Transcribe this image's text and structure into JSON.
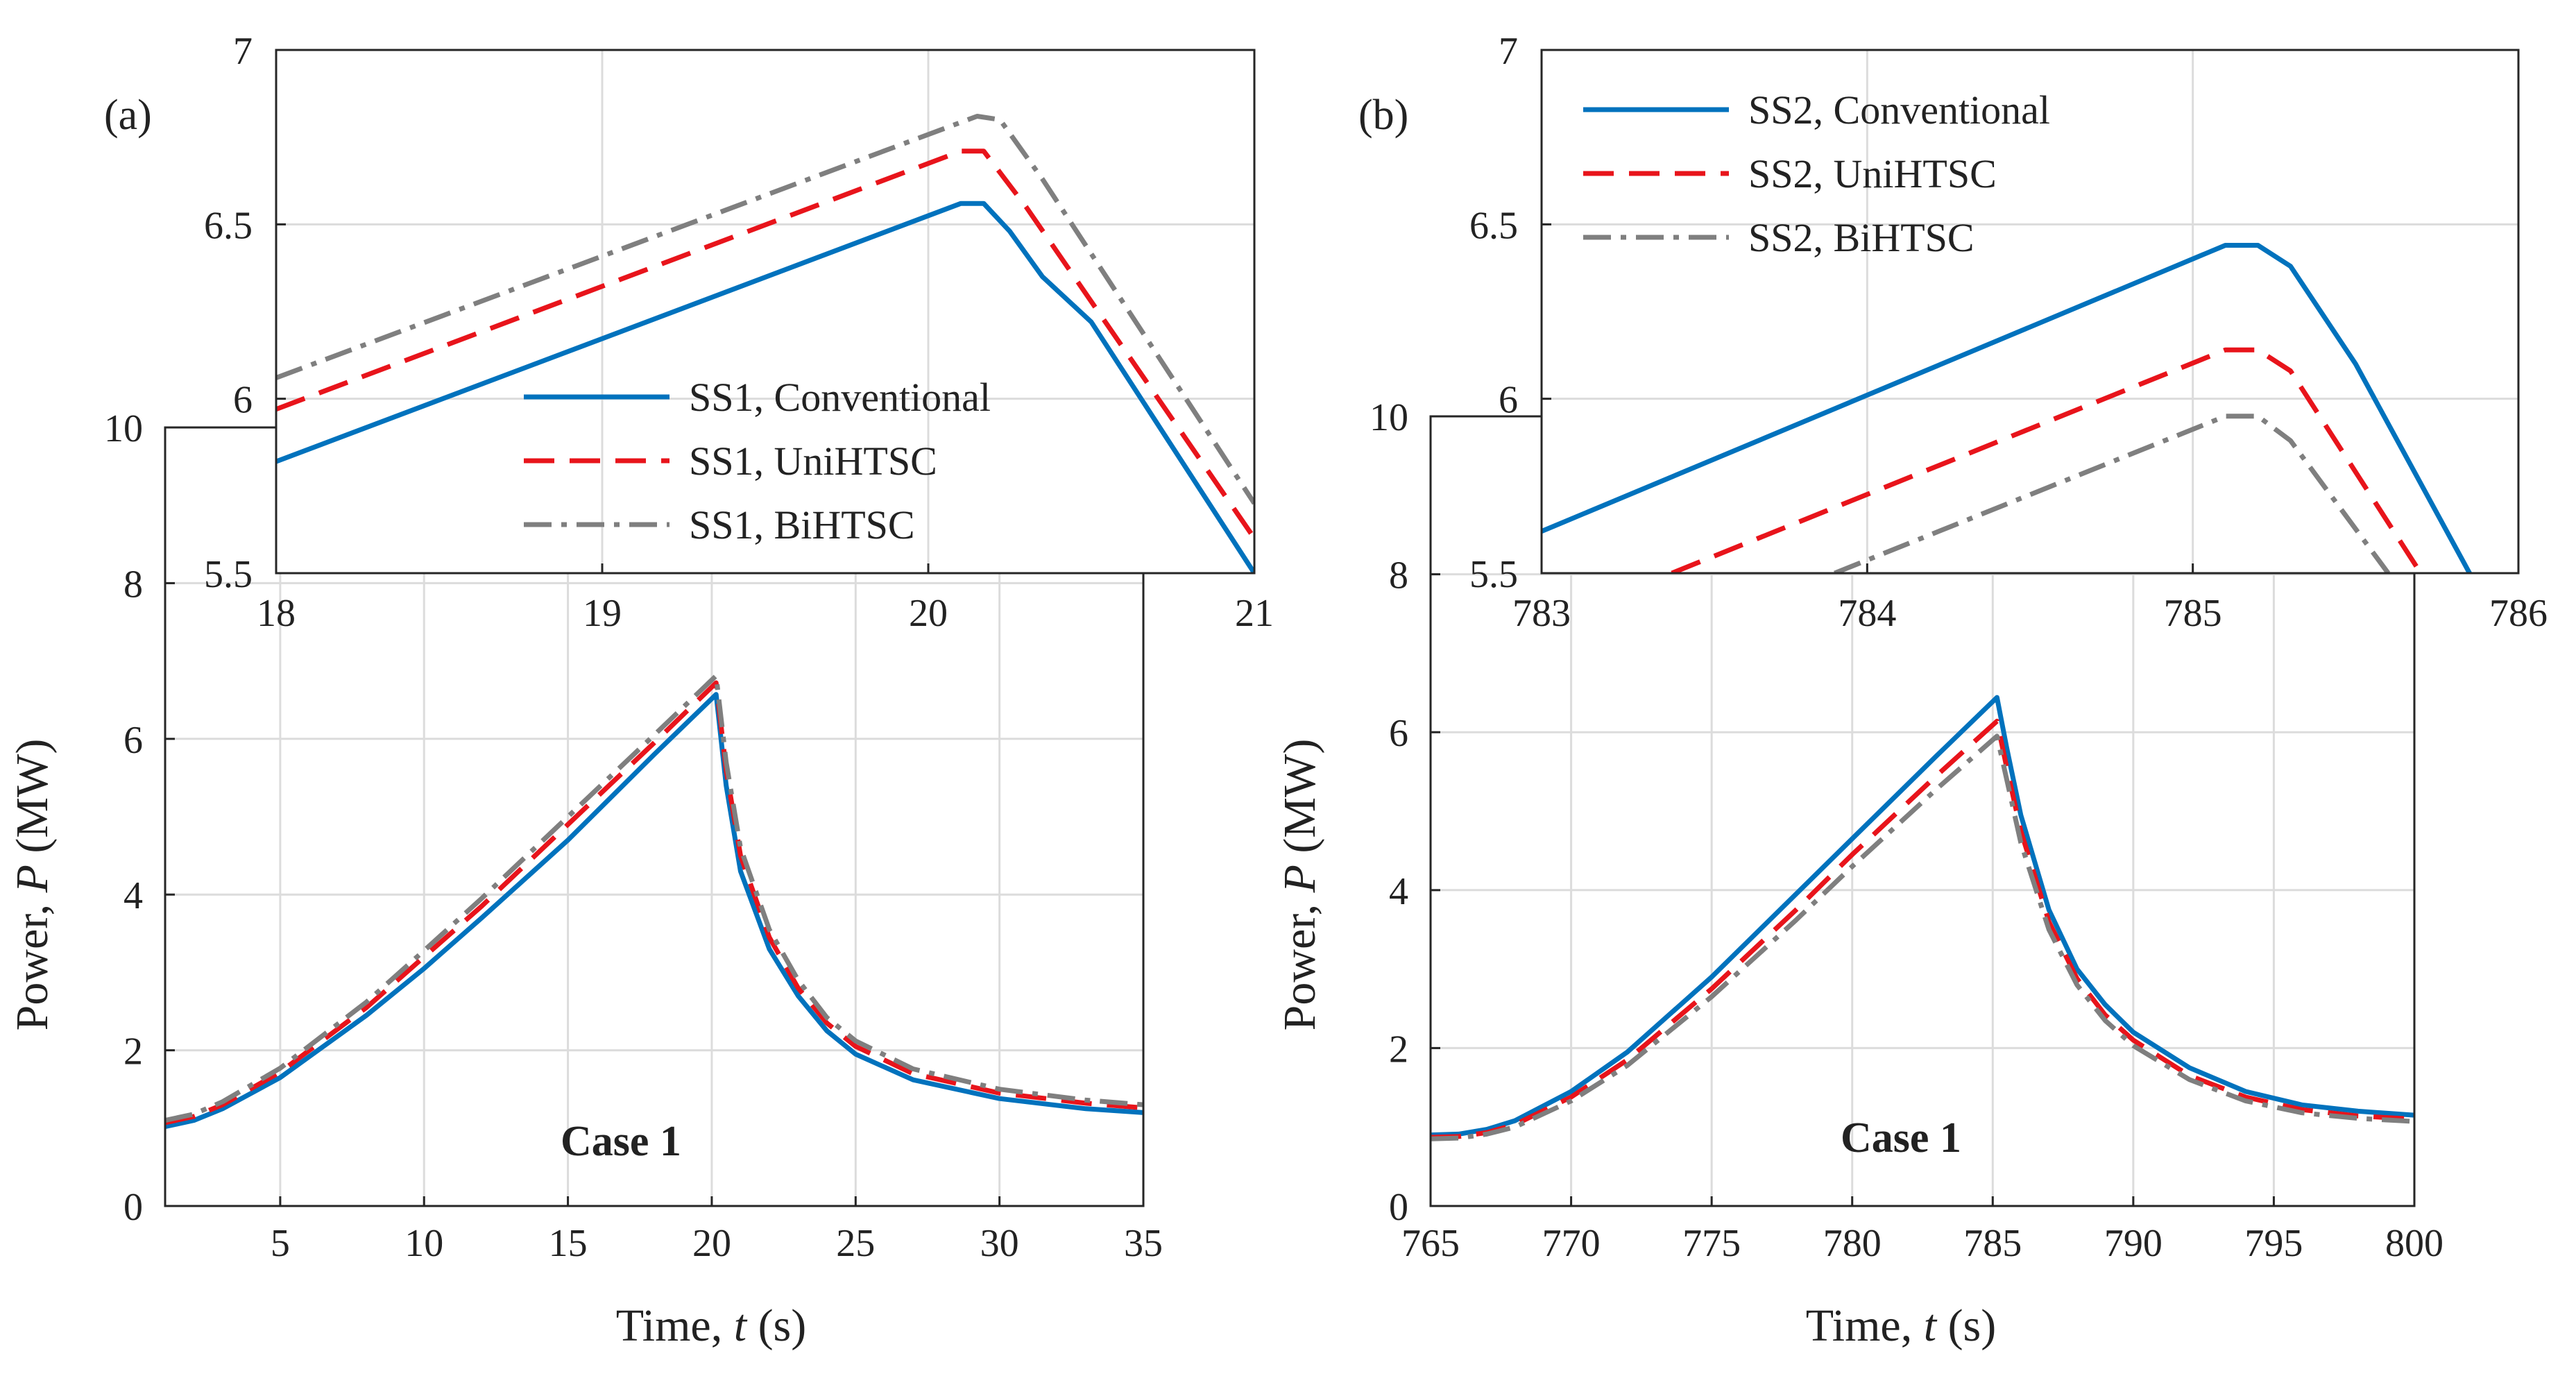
{
  "figure": {
    "colors": {
      "conventional": "#0072BD",
      "unihtsc": "#E8141B",
      "bihtsc": "#7F7F7F",
      "grid": "#DCDCDC",
      "axis": "#262626"
    }
  },
  "chart_data": [
    {
      "id": "a-main",
      "type": "line",
      "panel_label": "(a)",
      "annotation": "Case 1",
      "xlabel_main": "Time, ",
      "xlabel_var": "t",
      "xlabel_unit": " (s)",
      "ylabel_main": "Power, ",
      "ylabel_var": "P",
      "ylabel_unit": " (MW)",
      "xlim": [
        1,
        35
      ],
      "ylim": [
        0,
        10
      ],
      "xticks": [
        5,
        10,
        15,
        20,
        25,
        30,
        35
      ],
      "yticks": [
        0,
        2,
        4,
        6,
        8,
        10
      ],
      "series": [
        {
          "name": "SS1, Conventional",
          "key": "conventional",
          "x": [
            1,
            2,
            3,
            5,
            8,
            10,
            12,
            15,
            18,
            20.15,
            20.5,
            21,
            22,
            23,
            24,
            25,
            27,
            30,
            33,
            35
          ],
          "y": [
            1.02,
            1.1,
            1.25,
            1.65,
            2.45,
            3.05,
            3.7,
            4.7,
            5.8,
            6.57,
            5.4,
            4.3,
            3.3,
            2.7,
            2.25,
            1.95,
            1.62,
            1.38,
            1.25,
            1.2
          ]
        },
        {
          "name": "SS1, UniHTSC",
          "key": "unihtsc",
          "x": [
            1,
            2,
            3,
            5,
            8,
            10,
            12,
            15,
            18,
            20.15,
            20.5,
            21,
            22,
            23,
            24,
            25,
            27,
            30,
            33,
            35
          ],
          "y": [
            1.07,
            1.15,
            1.3,
            1.72,
            2.55,
            3.2,
            3.85,
            4.9,
            5.95,
            6.72,
            5.6,
            4.5,
            3.45,
            2.8,
            2.35,
            2.05,
            1.7,
            1.45,
            1.32,
            1.26
          ]
        },
        {
          "name": "SS1, BiHTSC",
          "key": "bihtsc",
          "x": [
            1,
            2,
            3,
            5,
            8,
            10,
            12,
            15,
            18,
            20.15,
            20.5,
            21,
            22,
            23,
            24,
            25,
            27,
            30,
            33,
            35
          ],
          "y": [
            1.1,
            1.18,
            1.34,
            1.77,
            2.62,
            3.28,
            3.95,
            5.0,
            6.05,
            6.81,
            5.7,
            4.6,
            3.55,
            2.9,
            2.42,
            2.12,
            1.76,
            1.5,
            1.36,
            1.3
          ]
        }
      ]
    },
    {
      "id": "a-inset",
      "type": "line",
      "xlim": [
        18,
        21
      ],
      "ylim": [
        5.5,
        7
      ],
      "xticks": [
        18,
        19,
        20,
        21
      ],
      "yticks": [
        5.5,
        6,
        6.5,
        7
      ],
      "legend": "lower-right",
      "series": [
        {
          "name": "SS1, Conventional",
          "key": "conventional",
          "x": [
            18,
            20.1,
            20.17,
            20.25,
            20.35,
            20.5,
            21
          ],
          "y": [
            5.82,
            6.56,
            6.56,
            6.48,
            6.35,
            6.22,
            5.5
          ]
        },
        {
          "name": "SS1, UniHTSC",
          "key": "unihtsc",
          "x": [
            18,
            20.1,
            20.17,
            20.3,
            21
          ],
          "y": [
            5.97,
            6.71,
            6.71,
            6.55,
            5.6
          ]
        },
        {
          "name": "SS1, BiHTSC",
          "key": "bihtsc",
          "x": [
            18,
            20.15,
            20.22,
            20.35,
            21
          ],
          "y": [
            6.06,
            6.81,
            6.8,
            6.63,
            5.7
          ]
        }
      ]
    },
    {
      "id": "b-main",
      "type": "line",
      "panel_label": "(b)",
      "annotation": "Case 1",
      "xlabel_main": "Time, ",
      "xlabel_var": "t",
      "xlabel_unit": " (s)",
      "ylabel_main": "Power, ",
      "ylabel_var": "P",
      "ylabel_unit": " (MW)",
      "xlim": [
        765,
        800
      ],
      "ylim": [
        0,
        10
      ],
      "xticks": [
        765,
        770,
        775,
        780,
        785,
        790,
        795,
        800
      ],
      "yticks": [
        0,
        2,
        4,
        6,
        8,
        10
      ],
      "series": [
        {
          "name": "SS2, Conventional",
          "key": "conventional",
          "x": [
            765,
            766,
            767,
            768,
            770,
            772,
            775,
            778,
            780,
            783,
            785.15,
            785.5,
            786,
            787,
            788,
            789,
            790,
            792,
            794,
            796,
            798,
            800
          ],
          "y": [
            0.9,
            0.91,
            0.97,
            1.08,
            1.45,
            1.95,
            2.9,
            3.95,
            4.65,
            5.7,
            6.44,
            5.8,
            4.95,
            3.75,
            3.0,
            2.55,
            2.2,
            1.75,
            1.45,
            1.28,
            1.2,
            1.15
          ]
        },
        {
          "name": "SS2, UniHTSC",
          "key": "unihtsc",
          "x": [
            765,
            766,
            767,
            768,
            770,
            772,
            775,
            778,
            780,
            783,
            785.15,
            785.5,
            786,
            787,
            788,
            789,
            790,
            792,
            794,
            796,
            798,
            800
          ],
          "y": [
            0.87,
            0.88,
            0.93,
            1.03,
            1.38,
            1.85,
            2.75,
            3.75,
            4.45,
            5.45,
            6.14,
            5.55,
            4.75,
            3.6,
            2.88,
            2.42,
            2.1,
            1.65,
            1.38,
            1.22,
            1.14,
            1.1
          ]
        },
        {
          "name": "SS2, BiHTSC",
          "key": "bihtsc",
          "x": [
            765,
            766,
            767,
            768,
            770,
            772,
            775,
            778,
            780,
            783,
            785.15,
            785.5,
            786,
            787,
            788,
            789,
            790,
            792,
            794,
            796,
            798,
            800
          ],
          "y": [
            0.85,
            0.86,
            0.91,
            1.0,
            1.33,
            1.78,
            2.65,
            3.62,
            4.3,
            5.28,
            5.95,
            5.4,
            4.6,
            3.5,
            2.8,
            2.35,
            2.03,
            1.6,
            1.33,
            1.18,
            1.11,
            1.07
          ]
        }
      ]
    },
    {
      "id": "b-inset",
      "type": "line",
      "xlim": [
        783,
        786
      ],
      "ylim": [
        5.5,
        7
      ],
      "xticks": [
        783,
        784,
        785,
        786
      ],
      "yticks": [
        5.5,
        6,
        6.5,
        7
      ],
      "legend": "top-left",
      "series": [
        {
          "name": "SS2, Conventional",
          "key": "conventional",
          "x": [
            783,
            785.1,
            785.2,
            785.3,
            785.5,
            785.85
          ],
          "y": [
            5.62,
            6.44,
            6.44,
            6.38,
            6.1,
            5.5
          ]
        },
        {
          "name": "SS2, UniHTSC",
          "key": "unihtsc",
          "x": [
            783.4,
            785.1,
            785.2,
            785.3,
            785.7
          ],
          "y": [
            5.5,
            6.14,
            6.14,
            6.08,
            5.5
          ]
        },
        {
          "name": "SS2, BiHTSC",
          "key": "bihtsc",
          "x": [
            783.9,
            785.1,
            785.2,
            785.3,
            785.6
          ],
          "y": [
            5.5,
            5.95,
            5.95,
            5.88,
            5.5
          ]
        }
      ]
    }
  ]
}
